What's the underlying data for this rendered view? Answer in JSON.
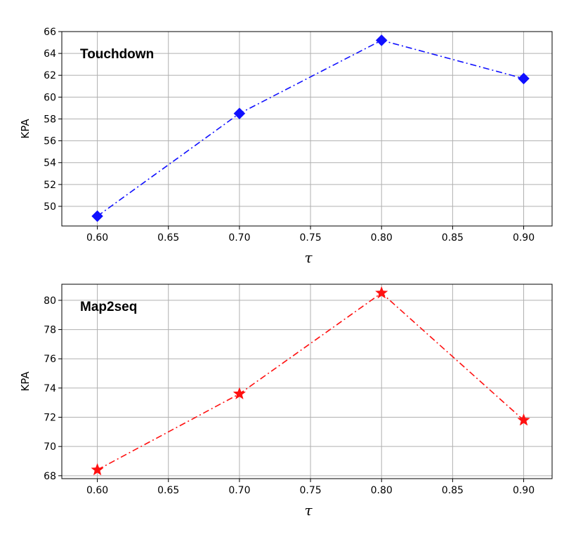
{
  "chart_data": [
    {
      "type": "line",
      "title": "Touchdown",
      "xlabel": "τ",
      "ylabel": "KPA",
      "x": [
        0.6,
        0.7,
        0.8,
        0.9
      ],
      "xticks": [
        "0.60",
        "0.65",
        "0.70",
        "0.75",
        "0.80",
        "0.85",
        "0.90"
      ],
      "yticks": [
        "50",
        "52",
        "54",
        "56",
        "58",
        "60",
        "62",
        "64",
        "66"
      ],
      "xlim": [
        0.575,
        0.92
      ],
      "ylim": [
        48.2,
        66
      ],
      "grid": true,
      "series": [
        {
          "values": [
            49.1,
            58.5,
            65.2,
            61.7
          ],
          "color": "#1010ff",
          "marker": "diamond",
          "linestyle": "dash-dot"
        }
      ]
    },
    {
      "type": "line",
      "title": "Map2seq",
      "xlabel": "τ",
      "ylabel": "KPA",
      "x": [
        0.6,
        0.7,
        0.8,
        0.9
      ],
      "xticks": [
        "0.60",
        "0.65",
        "0.70",
        "0.75",
        "0.80",
        "0.85",
        "0.90"
      ],
      "yticks": [
        "68",
        "70",
        "72",
        "74",
        "76",
        "78",
        "80"
      ],
      "xlim": [
        0.575,
        0.92
      ],
      "ylim": [
        67.8,
        81.1
      ],
      "grid": true,
      "series": [
        {
          "values": [
            68.4,
            73.6,
            80.5,
            71.8
          ],
          "color": "#ff1010",
          "marker": "star",
          "linestyle": "dash-dot"
        }
      ]
    }
  ]
}
